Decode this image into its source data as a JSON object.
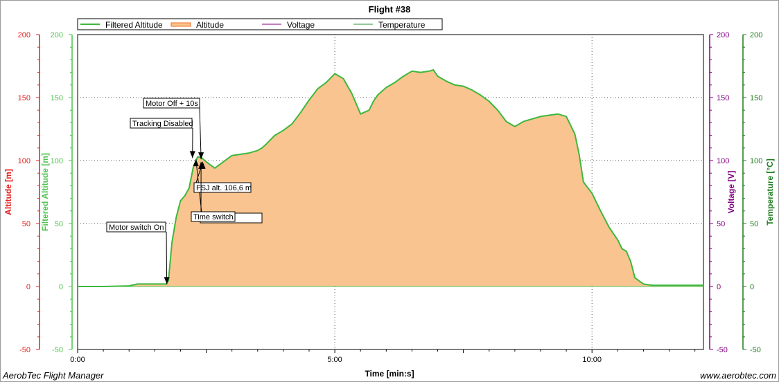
{
  "chart_data": {
    "type": "area",
    "title": "Flight #38",
    "xlabel": "Time [min:s]",
    "x_ticks": [
      "0:00",
      "5:00",
      "10:00"
    ],
    "x_range_seconds": [
      0,
      730
    ],
    "axes": {
      "altitude": {
        "label": "Altitude [m]",
        "color": "#e32020",
        "ylim": [
          -50,
          200
        ],
        "ticks": [
          "-50",
          "0",
          "50",
          "100",
          "150",
          "200"
        ]
      },
      "filtered_altitude": {
        "label": "Filtered Altitude [m]",
        "color": "#4fc34f",
        "ylim": [
          -50,
          200
        ],
        "ticks": [
          "-50",
          "0",
          "50",
          "100",
          "150",
          "200"
        ]
      },
      "voltage": {
        "label": "Voltage [V]",
        "color": "#800080",
        "ylim": [
          -50,
          200
        ],
        "ticks": [
          "-50",
          "0",
          "50",
          "100",
          "150",
          "200"
        ]
      },
      "temperature": {
        "label": "Temperature [°C]",
        "color": "#1f7d1f",
        "ylim": [
          -50,
          200
        ],
        "ticks": [
          "-50",
          "0",
          "50",
          "100",
          "150",
          "200"
        ]
      }
    },
    "legend": [
      "Filtered Altitude",
      "Altitude",
      "Voltage",
      "Temperature"
    ],
    "legend_colors": [
      "#3cb83c",
      "#f26b21",
      "#800080",
      "#2b8f2b"
    ],
    "grid": true,
    "area_fill": "#f9c48f",
    "series": [
      {
        "name": "Filtered Altitude",
        "x": [
          0,
          30,
          60,
          70,
          84,
          100,
          104,
          106,
          110,
          115,
          120,
          125,
          130,
          135,
          140,
          145,
          150,
          160,
          170,
          180,
          190,
          200,
          210,
          215,
          220,
          230,
          240,
          250,
          260,
          270,
          280,
          290,
          300,
          310,
          320,
          330,
          340,
          345,
          350,
          360,
          370,
          380,
          390,
          400,
          410,
          415,
          420,
          430,
          440,
          450,
          460,
          470,
          480,
          490,
          500,
          510,
          520,
          530,
          540,
          550,
          560,
          570,
          580,
          585,
          590,
          600,
          610,
          620,
          630,
          635,
          640,
          645,
          650,
          660,
          670,
          675,
          680,
          690,
          700,
          710,
          720,
          730
        ],
        "y": [
          0,
          0,
          0.5,
          2,
          2,
          2,
          2,
          5,
          35,
          55,
          68,
          72,
          78,
          95,
          103,
          102,
          99,
          94,
          99,
          104,
          105,
          106,
          108,
          110,
          113,
          120,
          124,
          129,
          138,
          148,
          157,
          162,
          169,
          165,
          153,
          137,
          140,
          147,
          152,
          158,
          162,
          167,
          171,
          170,
          171,
          172,
          167,
          163,
          160,
          159,
          156,
          152,
          147,
          140,
          131,
          127,
          131,
          133,
          135,
          136,
          137,
          135,
          121,
          105,
          83,
          74,
          60,
          47,
          37,
          30,
          28,
          20,
          7,
          2,
          1,
          1,
          1,
          1,
          1,
          1,
          1,
          1
        ]
      },
      {
        "name": "Altitude",
        "x": [],
        "y": []
      },
      {
        "name": "Voltage",
        "x": [],
        "y": []
      },
      {
        "name": "Temperature",
        "x": [],
        "y": []
      }
    ],
    "annotations": [
      {
        "text": "Motor switch On",
        "x": 104,
        "y": 2
      },
      {
        "text": "Tracking Disabled",
        "x": 134,
        "y": 102
      },
      {
        "text": "Motor Off + 10s",
        "x": 144,
        "y": 101
      },
      {
        "text": "FSJ alt. 106,6 m",
        "x": 146,
        "y": 99
      },
      {
        "text": "Time switch",
        "x": 144,
        "y": 99
      },
      {
        "text": "Disable",
        "x": 138,
        "y": 101
      }
    ]
  },
  "footer": {
    "left": "AerobTec Flight Manager",
    "right": "www.aerobtec.com"
  }
}
